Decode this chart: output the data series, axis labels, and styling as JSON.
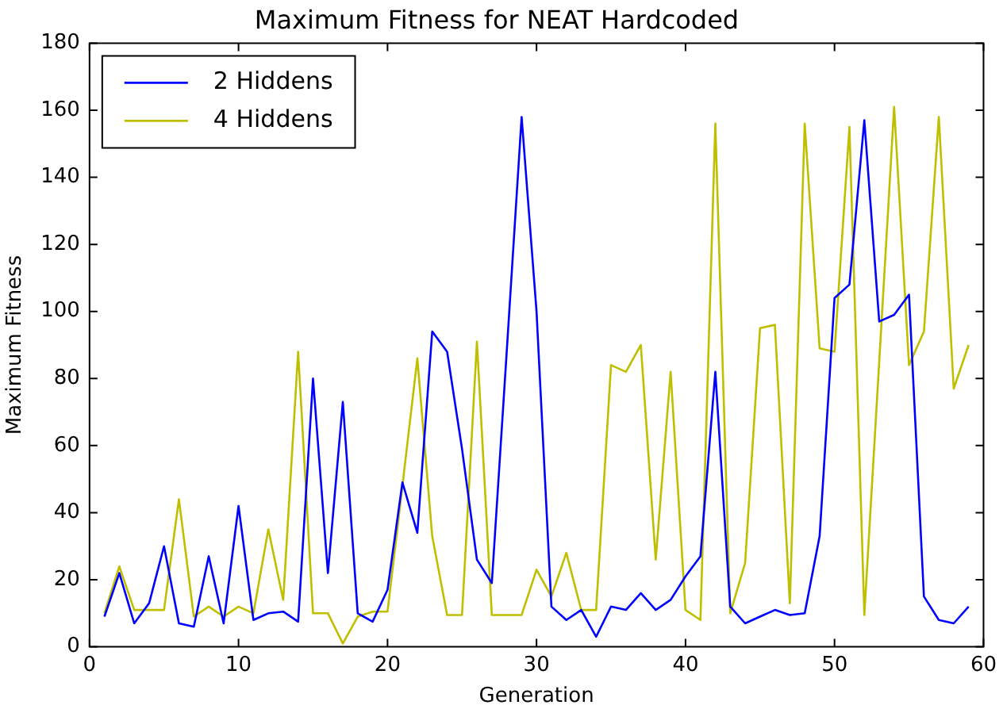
{
  "chart_data": {
    "type": "line",
    "title": "Maximum Fitness for NEAT Hardcoded",
    "xlabel": "Generation",
    "ylabel": "Maximum Fitness",
    "x": [
      1,
      2,
      3,
      4,
      5,
      6,
      7,
      8,
      9,
      10,
      11,
      12,
      13,
      14,
      15,
      16,
      17,
      18,
      19,
      20,
      21,
      22,
      23,
      24,
      25,
      26,
      27,
      28,
      29,
      30,
      31,
      32,
      33,
      34,
      35,
      36,
      37,
      38,
      39,
      40,
      41,
      42,
      43,
      44,
      45,
      46,
      47,
      48,
      49,
      50,
      51,
      52,
      53,
      54,
      55,
      56,
      57,
      58,
      59
    ],
    "series": [
      {
        "name": "2 Hiddens",
        "color": "#0000ff",
        "values": [
          9,
          22,
          7,
          13,
          30,
          7,
          6,
          27,
          7,
          42,
          8,
          10,
          10.5,
          7.5,
          80,
          22,
          73,
          10,
          7.5,
          17,
          49,
          34,
          94,
          88,
          59,
          26,
          19,
          88,
          158,
          100,
          12,
          8,
          11,
          3,
          12,
          11,
          16,
          11,
          14,
          21,
          27,
          82,
          12,
          7,
          9,
          11,
          9.5,
          10,
          33,
          104,
          108,
          157,
          97,
          99,
          105,
          15,
          8,
          7,
          12
        ]
      },
      {
        "name": "4 Hiddens",
        "color": "#bfbf00",
        "values": [
          10,
          24,
          11,
          11,
          11,
          44,
          9,
          12,
          9,
          12,
          10,
          35,
          14,
          88,
          10,
          10,
          1,
          9,
          10.5,
          10.5,
          48,
          86,
          33,
          9.5,
          9.5,
          91,
          9.5,
          9.5,
          9.5,
          23,
          15,
          28,
          11,
          11,
          84,
          82,
          90,
          26,
          82,
          11,
          8,
          156,
          10,
          25,
          95,
          96,
          13,
          156,
          89,
          88,
          155,
          9.5,
          85,
          161,
          84,
          94,
          158,
          77,
          90
        ]
      }
    ],
    "xlim": [
      0,
      60
    ],
    "xticks": [
      0,
      10,
      20,
      30,
      40,
      50,
      60
    ],
    "ylim": [
      0,
      180
    ],
    "yticks": [
      0,
      20,
      40,
      60,
      80,
      100,
      120,
      140,
      160,
      180
    ],
    "grid": false,
    "legend": "top left",
    "marker": "none",
    "line_style": "solid"
  }
}
